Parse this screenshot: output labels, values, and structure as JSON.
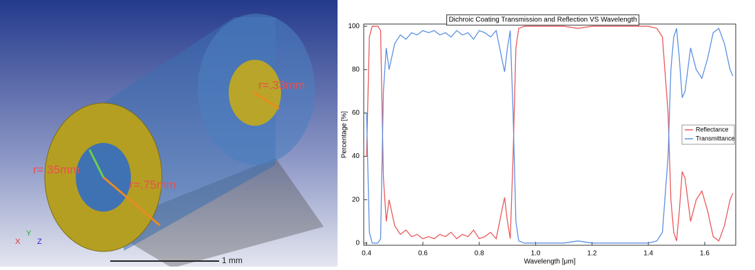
{
  "render": {
    "labels": [
      "r=.33mm",
      "r=.35mm",
      "r=.75mm"
    ],
    "axes": [
      "X",
      "Y",
      "Z"
    ],
    "scale_bar": "1 mm"
  },
  "chart_data": {
    "type": "line",
    "title": "Dichroic Coating Transmission and Reflection VS Wavelength",
    "x_label": "Wavelength [μm]",
    "y_label": "Percentage [%]",
    "x": [
      0.4,
      0.41,
      0.42,
      0.43,
      0.44,
      0.45,
      0.46,
      0.47,
      0.48,
      0.5,
      0.52,
      0.54,
      0.56,
      0.58,
      0.6,
      0.62,
      0.64,
      0.66,
      0.68,
      0.7,
      0.72,
      0.74,
      0.76,
      0.78,
      0.8,
      0.82,
      0.84,
      0.86,
      0.88,
      0.89,
      0.9,
      0.91,
      0.92,
      0.93,
      0.94,
      0.96,
      1.0,
      1.05,
      1.1,
      1.15,
      1.2,
      1.25,
      1.3,
      1.35,
      1.4,
      1.43,
      1.45,
      1.47,
      1.48,
      1.49,
      1.5,
      1.51,
      1.52,
      1.53,
      1.55,
      1.57,
      1.59,
      1.61,
      1.63,
      1.65,
      1.67,
      1.69,
      1.7
    ],
    "series": [
      {
        "name": "Reflectance",
        "color": "#e8585a",
        "values": [
          40,
          95,
          100,
          100,
          100,
          98,
          30,
          10,
          20,
          8,
          4,
          6,
          3,
          4,
          2,
          3,
          2,
          4,
          3,
          5,
          2,
          4,
          3,
          6,
          2,
          3,
          5,
          2,
          15,
          21,
          10,
          2,
          40,
          90,
          99,
          100,
          100,
          100,
          100,
          99,
          100,
          100,
          100,
          100,
          100,
          99,
          95,
          60,
          20,
          5,
          1,
          15,
          33,
          30,
          10,
          20,
          24,
          15,
          3,
          1,
          8,
          20,
          23
        ]
      },
      {
        "name": "Transmittance",
        "color": "#5b8fe0",
        "values": [
          60,
          5,
          0,
          0,
          0,
          2,
          70,
          90,
          80,
          92,
          96,
          94,
          97,
          96,
          98,
          97,
          98,
          96,
          97,
          95,
          98,
          96,
          97,
          94,
          98,
          97,
          95,
          98,
          85,
          79,
          90,
          98,
          60,
          10,
          1,
          0,
          0,
          0,
          0,
          1,
          0,
          0,
          0,
          0,
          0,
          1,
          5,
          40,
          80,
          95,
          99,
          85,
          67,
          70,
          90,
          80,
          76,
          85,
          97,
          99,
          92,
          80,
          77
        ]
      }
    ],
    "xlim": [
      0.39,
      1.71
    ],
    "ylim": [
      -1,
      101
    ],
    "xticks": [
      0.4,
      0.6,
      0.8,
      {
        "value": 1.0,
        "label": "1.0"
      },
      1.2,
      1.4,
      1.6
    ],
    "yticks": [
      0,
      20,
      40,
      60,
      80,
      100
    ],
    "legend": "right"
  }
}
